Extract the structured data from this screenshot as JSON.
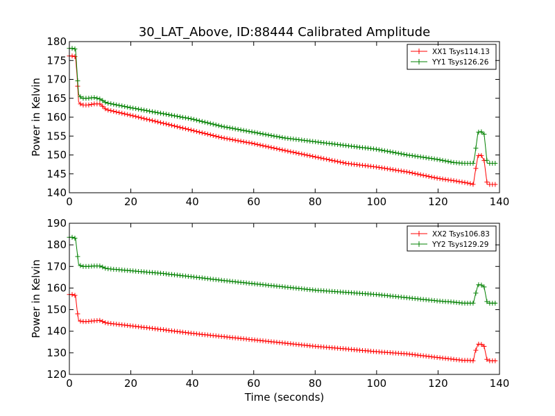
{
  "figure": {
    "title": "30_LAT_Above, ID:88444 Calibrated Amplitude"
  },
  "chart_data": [
    {
      "type": "line",
      "ylabel": "Power in Kelvin",
      "xlabel": "",
      "xlim": [
        0,
        140
      ],
      "ylim": [
        140,
        180
      ],
      "xticks": [
        "0",
        "20",
        "40",
        "60",
        "80",
        "100",
        "120",
        "140"
      ],
      "yticks": [
        "140",
        "145",
        "150",
        "155",
        "160",
        "165",
        "170",
        "175",
        "180"
      ],
      "grid": false,
      "legend_position": "top-right",
      "marker": "+",
      "series": [
        {
          "name": "XX1 Tsys114.13",
          "color": "#ff0000",
          "x": [
            0,
            1,
            2,
            2.5,
            3,
            4,
            6,
            8,
            10,
            12,
            20,
            30,
            40,
            50,
            60,
            70,
            80,
            90,
            100,
            110,
            120,
            125,
            128,
            130,
            131.5,
            132,
            133,
            134,
            135,
            136,
            138,
            139
          ],
          "y": [
            176.2,
            176.2,
            176,
            171,
            164,
            163.2,
            163.2,
            163.5,
            163.5,
            162,
            160.5,
            158.5,
            156.5,
            154.5,
            153,
            151.2,
            149.5,
            147.8,
            146.8,
            145.5,
            143.8,
            143.2,
            142.8,
            142.5,
            142.2,
            145,
            149.8,
            150,
            148.5,
            142.2,
            142.2,
            142.2
          ]
        },
        {
          "name": "YY1 Tsys126.26",
          "color": "#008000",
          "x": [
            0,
            1,
            2,
            2.5,
            3,
            4,
            6,
            8,
            10,
            12,
            20,
            30,
            40,
            50,
            60,
            70,
            80,
            90,
            100,
            110,
            120,
            125,
            128,
            130,
            131.5,
            132,
            133,
            134,
            135,
            136,
            138,
            139
          ],
          "y": [
            178.2,
            178.2,
            178,
            172,
            166,
            165,
            165,
            165.2,
            164.8,
            163.8,
            162.5,
            161,
            159.5,
            157.5,
            156,
            154.5,
            153.5,
            152.5,
            151.5,
            150,
            148.8,
            148,
            147.8,
            147.8,
            147.8,
            150,
            156,
            156.2,
            155.5,
            147.8,
            147.8,
            147.8
          ]
        }
      ]
    },
    {
      "type": "line",
      "ylabel": "Power in Kelvin",
      "xlabel": "Time (seconds)",
      "xlim": [
        0,
        140
      ],
      "ylim": [
        120,
        190
      ],
      "xticks": [
        "0",
        "20",
        "40",
        "60",
        "80",
        "100",
        "120",
        "140"
      ],
      "yticks": [
        "120",
        "130",
        "140",
        "150",
        "160",
        "170",
        "180",
        "190"
      ],
      "grid": false,
      "legend_position": "top-right",
      "marker": "+",
      "series": [
        {
          "name": "XX2 Tsys106.83",
          "color": "#ff0000",
          "x": [
            0,
            1,
            2,
            2.5,
            3,
            4,
            6,
            8,
            10,
            12,
            20,
            30,
            40,
            50,
            60,
            70,
            80,
            90,
            100,
            110,
            120,
            125,
            128,
            130,
            131.5,
            132,
            133,
            134,
            135,
            136,
            138,
            139
          ],
          "y": [
            157,
            157,
            156.5,
            150,
            145,
            144.5,
            144.5,
            144.8,
            145,
            143.8,
            142.5,
            140.8,
            139,
            137.5,
            136,
            134.5,
            133,
            131.8,
            130.5,
            129.5,
            127.8,
            127,
            126.5,
            126.5,
            126.3,
            130,
            134,
            134,
            133,
            126.3,
            126.3,
            126.3
          ]
        },
        {
          "name": "YY2 Tsys129.29",
          "color": "#008000",
          "x": [
            0,
            1,
            2,
            2.5,
            3,
            4,
            6,
            8,
            10,
            12,
            20,
            30,
            40,
            50,
            60,
            70,
            80,
            90,
            100,
            110,
            120,
            125,
            128,
            130,
            131.5,
            132,
            133,
            134,
            135,
            136,
            138,
            139
          ],
          "y": [
            183.5,
            183.5,
            183,
            177,
            171,
            170,
            170,
            170.2,
            170.2,
            169,
            168,
            166.8,
            165.2,
            163.5,
            162,
            160.5,
            159,
            158,
            157,
            155.5,
            154,
            153.5,
            153,
            153,
            153,
            156,
            161.5,
            161.5,
            160.5,
            153,
            153,
            153
          ]
        }
      ]
    }
  ]
}
